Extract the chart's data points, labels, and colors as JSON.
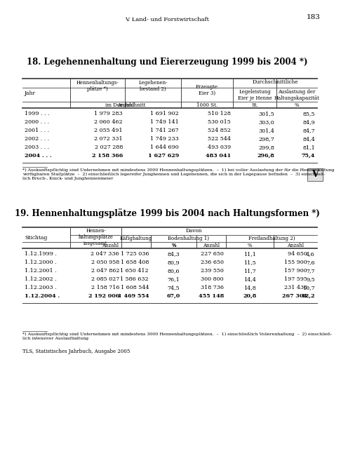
{
  "page_number": "183",
  "chapter": "V. Land- und Forstwirtschaft",
  "section_marker": "V",
  "table1_title": "18. Legehennenhaltung und Eiererzeugung 1999 bis 2004 *)",
  "table1_rows": [
    [
      "1999 . . .",
      "1 979 283",
      "1 691 902",
      "510 128",
      "301,5",
      "85,5"
    ],
    [
      "2000 . . .",
      "2 060 462",
      "1 749 141",
      "530 015",
      "303,0",
      "84,9"
    ],
    [
      "2001 . . .",
      "2 055 491",
      "1 741 267",
      "524 852",
      "301,4",
      "84,7"
    ],
    [
      "2002 . . .",
      "2 072 331",
      "1 749 233",
      "522 544",
      "298,7",
      "84,4"
    ],
    [
      "2003 . . .",
      "2 027 288",
      "1 644 690",
      "493 039",
      "299,8",
      "81,1"
    ],
    [
      "2004 . . .",
      "2 158 366",
      "1 627 629",
      "483 041",
      "296,8",
      "75,4"
    ]
  ],
  "table1_footnote_line1": "*) Auskunftspflichtig sind Unternehmen mit mindestens 3000 Hennenhaltungsplätzen.  –  1) bei voller Auslastung der für die Hennenhaltung",
  "table1_footnote_line2": "verfügbaren Stallplätze  –  2) einschließlich legereifer Junghennen und Legehennen, die sich in der Legepause befinden  –  3) einschließ-",
  "table1_footnote_line3": "lich Bruch-, Knick- und Junghennenmeier",
  "table2_title": "19. Hennenhaltungsplätze 1999 bis 2004 nach Haltungsformen *)",
  "table2_rows": [
    [
      "1.12.1999 .",
      "2 047 336",
      "1 725 036",
      "84,3",
      "227 650",
      "11,1",
      "94 650",
      "4,6"
    ],
    [
      "1.12.2000 .",
      "2 050 958",
      "1 658 408",
      "80,9",
      "236 650",
      "11,5",
      "155 900",
      "7,6"
    ],
    [
      "1.12.2001 .",
      "2 047 862",
      "1 650 412",
      "80,6",
      "239 550",
      "11,7",
      "157 900",
      "7,7"
    ],
    [
      "1.12.2002 .",
      "2 085 027",
      "1 586 632",
      "76,1",
      "300 800",
      "14,4",
      "197 595",
      "9,5"
    ],
    [
      "1.12.2003 .",
      "2 158 716",
      "1 608 544",
      "74,5",
      "318 736",
      "14,8",
      "231 436",
      "10,7"
    ],
    [
      "1.12.2004 .",
      "2 192 006",
      "1 469 554",
      "67,0",
      "455 148",
      "20,8",
      "267 304",
      "12,2"
    ]
  ],
  "table2_footnote_line1": "*) Auskunftspflichtig sind Unternehmen mit mindestens 3000 Hennenhaltungsplätzen.  –  1) einschließlich Volierenhaltung  –  2) einschließ-",
  "table2_footnote_line2": "lich intensiver Auslaufhaltung",
  "footer": "TLS, Statistisches Jahrbuch, Ausgabe 2005",
  "bg_color": "#ffffff",
  "text_color": "#000000",
  "line_color": "#444444"
}
